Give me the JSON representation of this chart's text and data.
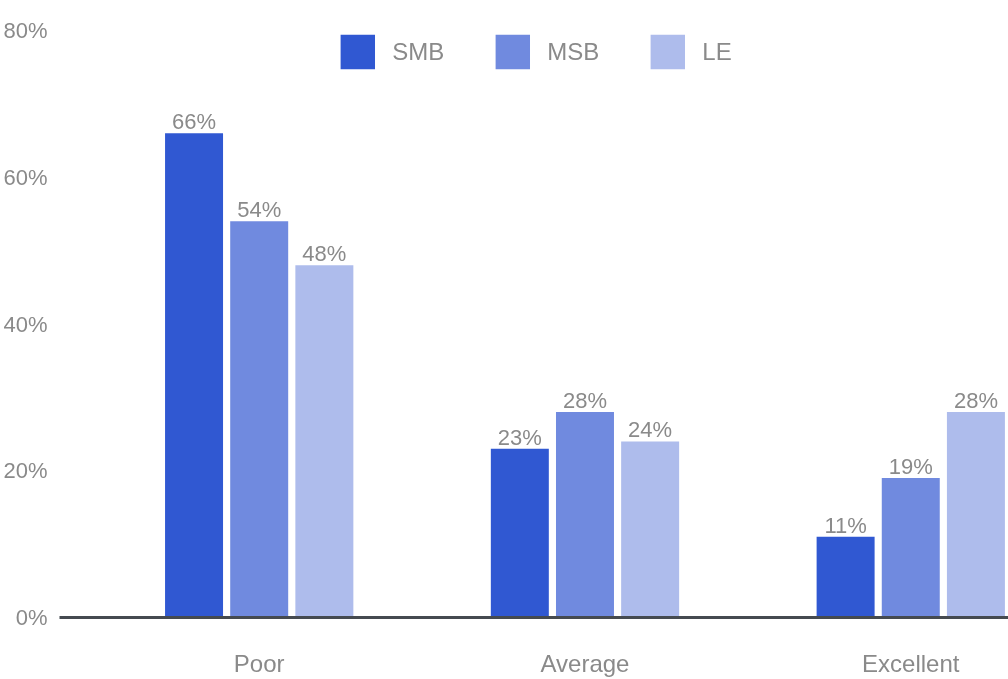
{
  "chart_data": {
    "type": "bar",
    "categories": [
      "Poor",
      "Average",
      "Excellent"
    ],
    "series": [
      {
        "name": "SMB",
        "color": "#3058d2",
        "values": [
          66,
          23,
          11
        ],
        "value_labels": [
          "66%",
          "23%",
          "11%"
        ]
      },
      {
        "name": "MSB",
        "color": "#708adf",
        "values": [
          54,
          28,
          19
        ],
        "value_labels": [
          "54%",
          "28%",
          "19%"
        ]
      },
      {
        "name": "LE",
        "color": "#aebcec",
        "values": [
          48,
          24,
          28
        ],
        "value_labels": [
          "48%",
          "24%",
          "28%"
        ]
      }
    ],
    "ylim": [
      0,
      80
    ],
    "yticks": [
      {
        "value": 0,
        "label": "0%"
      },
      {
        "value": 20,
        "label": "20%"
      },
      {
        "value": 40,
        "label": "40%"
      },
      {
        "value": 60,
        "label": "60%"
      },
      {
        "value": 80,
        "label": "80%"
      }
    ],
    "grid": false,
    "legend": "top"
  }
}
